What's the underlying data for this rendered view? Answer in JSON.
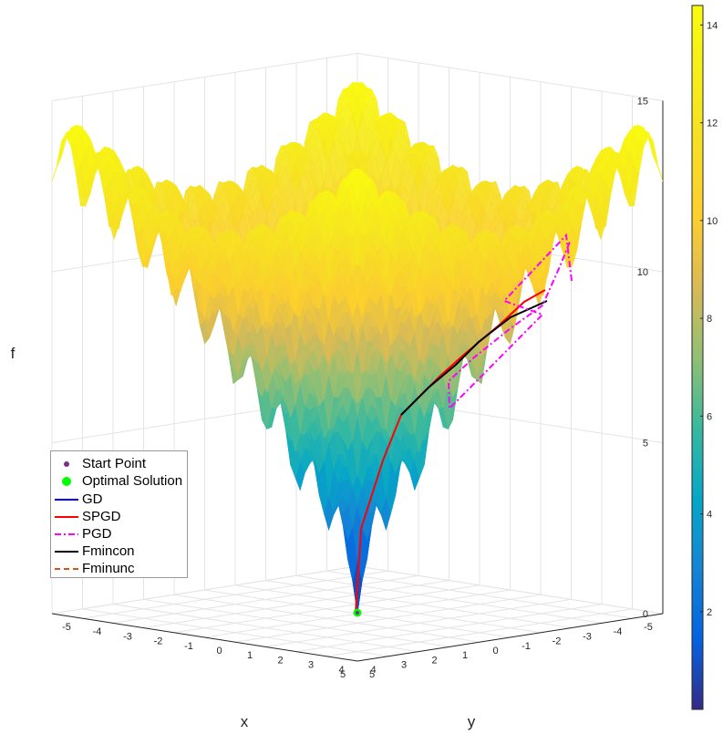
{
  "chart_data": {
    "type": "surface3d",
    "title": "",
    "xlabel": "x",
    "ylabel": "y",
    "zlabel": "f",
    "xlim": [
      -5,
      5
    ],
    "ylim": [
      -5,
      5
    ],
    "zlim": [
      0,
      15
    ],
    "x_ticks": [
      "5",
      "4",
      "3",
      "2",
      "1",
      "0",
      "-1",
      "-2",
      "-3",
      "-4",
      "-5"
    ],
    "y_ticks": [
      "5",
      "4",
      "3",
      "2",
      "1",
      "0",
      "-1",
      "-2",
      "-3",
      "-4",
      "-5"
    ],
    "z_ticks": [
      "0",
      "5",
      "10",
      "15"
    ],
    "colorbar": {
      "range": [
        0,
        14.4
      ],
      "ticks": [
        "2",
        "4",
        "6",
        "8",
        "10",
        "12",
        "14"
      ],
      "colormap": "parula"
    },
    "surface": {
      "function": "Ackley",
      "min_point": [
        0,
        0,
        0
      ],
      "corner_value": 12.6
    },
    "markers": [
      {
        "name": "Start Point",
        "color": "#7e2f8e"
      },
      {
        "name": "Optimal Solution",
        "color": "#00ff00",
        "point": [
          0,
          0,
          0
        ]
      }
    ],
    "paths": [
      {
        "name": "GD",
        "color": "#0000ff",
        "style": "solid"
      },
      {
        "name": "SPGD",
        "color": "#ff0000",
        "style": "solid"
      },
      {
        "name": "PGD",
        "color": "#ff00ff",
        "style": "dash-dot"
      },
      {
        "name": "Fmincon",
        "color": "#000000",
        "style": "solid"
      },
      {
        "name": "Fminunc",
        "color": "#d95319",
        "style": "dashed"
      }
    ],
    "legend_position": "bottom-left",
    "grid": true
  }
}
